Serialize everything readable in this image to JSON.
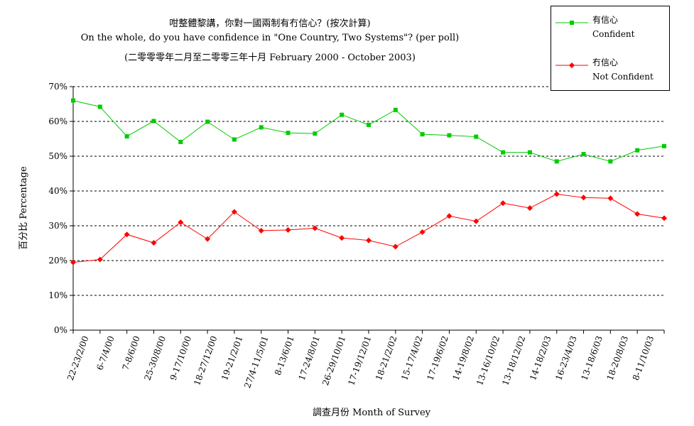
{
  "chart_data": {
    "type": "line",
    "title": "咁整體黎講，你對一國兩制有冇信心？(按次計算)",
    "subtitle": "On the whole, do you have confidence in \"One Country, Two Systems\"? (per poll)",
    "subtitle2": "(二零零零年二月至二零零三年十月 February 2000 - October 2003)",
    "xlabel": "調查月份 Month of Survey",
    "ylabel": "百分比 Percentage",
    "ylim": [
      0,
      70
    ],
    "yticks": [
      "0%",
      "10%",
      "20%",
      "30%",
      "40%",
      "50%",
      "60%",
      "70%"
    ],
    "grid": true,
    "legend_position": "top-right",
    "categories": [
      "22-23/2/00",
      "6-7/4/00",
      "7-8/6/00",
      "25-30/8/00",
      "9-17/10/00",
      "18-27/12/00",
      "19-21/2/01",
      "27/4-11/5/01",
      "8-13/6/01",
      "17-24/8/01",
      "26-29/10/01",
      "17-19/12/01",
      "18-21/2/02",
      "15-17/4/02",
      "17-19/6/02",
      "14-19/8/02",
      "13-16/10/02",
      "13-18/12/02",
      "14-18/2/03",
      "16-23/4/03",
      "13-18/6/03",
      "18-20/8/03",
      "8-11/10/03"
    ],
    "series": [
      {
        "name": "有信心",
        "name_en": "Confident",
        "color": "#00cc00",
        "marker": "square",
        "values": [
          66,
          64.2,
          55.7,
          60.1,
          54.1,
          59.9,
          54.8,
          58.3,
          56.7,
          56.5,
          61.9,
          59,
          63.3,
          56.3,
          56,
          55.6,
          51.1,
          51.1,
          48.5,
          50.6,
          48.5,
          51.7,
          52.9
        ]
      },
      {
        "name": "冇信心",
        "name_en": "Not Confident",
        "color": "#ff0000",
        "marker": "diamond",
        "values": [
          19.5,
          20.3,
          27.5,
          25.1,
          31,
          26.2,
          34,
          28.6,
          28.8,
          29.3,
          26.5,
          25.8,
          24,
          28.2,
          32.8,
          31.3,
          36.5,
          35.1,
          39.1,
          38.1,
          37.9,
          33.4,
          32.2
        ]
      }
    ]
  }
}
